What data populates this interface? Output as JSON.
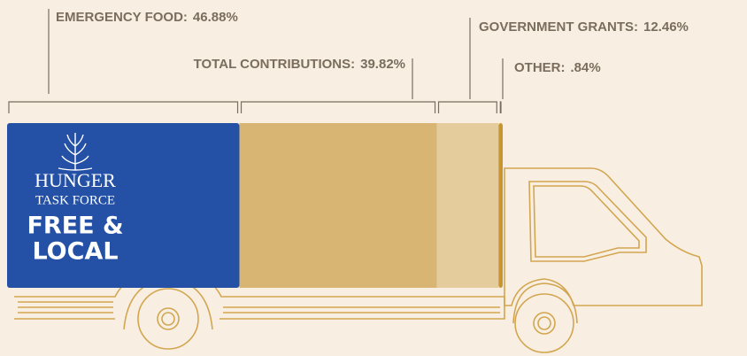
{
  "chart_data": {
    "type": "bar",
    "stacked": true,
    "orientation": "horizontal",
    "categories": [
      "EMERGENCY FOOD:",
      "TOTAL CONTRIBUTIONS:",
      "GOVERNMENT GRANTS:",
      "OTHER:"
    ],
    "values": [
      46.88,
      39.82,
      12.46,
      0.84
    ],
    "value_labels": [
      "46.88%",
      "39.82%",
      "12.46%",
      ".84%"
    ],
    "colors": [
      "#2451a6",
      "#d9b574",
      "#e5cc9d",
      "#c9952f"
    ],
    "xlim": [
      0,
      100
    ]
  },
  "logo": {
    "lines": [
      "HUNGER",
      "TASK FORCE",
      "FREE &",
      "LOCAL"
    ]
  }
}
